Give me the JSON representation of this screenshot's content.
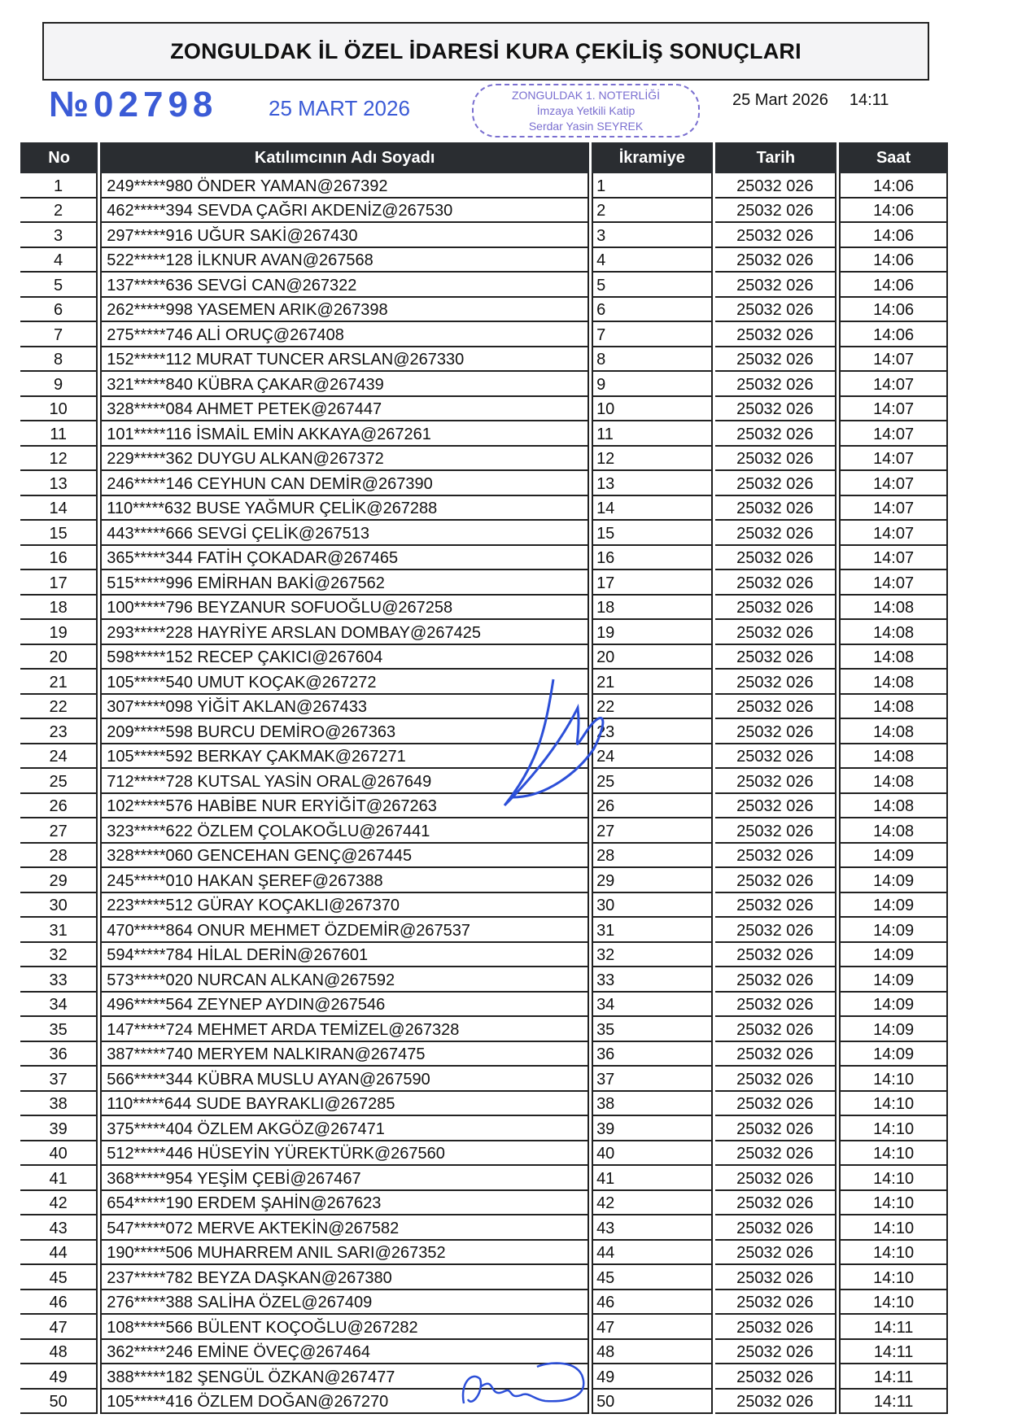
{
  "header": {
    "title": "ZONGULDAK İL ÖZEL İDARESİ KURA ÇEKİLİŞ SONUÇLARI",
    "date": "25 Mart 2026",
    "time": "14:11"
  },
  "table": {
    "columns": [
      "No",
      "Katılımcının Adı Soyadı",
      "İkramiye",
      "Tarih",
      "Saat"
    ],
    "rows": [
      [
        "1",
        "249*****980 ÖNDER YAMAN@267392",
        "1",
        "25032 026",
        "14:06"
      ],
      [
        "2",
        "462*****394 SEVDA ÇAĞRI AKDENİZ@267530",
        "2",
        "25032 026",
        "14:06"
      ],
      [
        "3",
        "297*****916 UĞUR SAKİ@267430",
        "3",
        "25032 026",
        "14:06"
      ],
      [
        "4",
        "522*****128 İLKNUR AVAN@267568",
        "4",
        "25032 026",
        "14:06"
      ],
      [
        "5",
        "137*****636 SEVGİ CAN@267322",
        "5",
        "25032 026",
        "14:06"
      ],
      [
        "6",
        "262*****998 YASEMEN ARIK@267398",
        "6",
        "25032 026",
        "14:06"
      ],
      [
        "7",
        "275*****746 ALİ ORUÇ@267408",
        "7",
        "25032 026",
        "14:06"
      ],
      [
        "8",
        "152*****112 MURAT TUNCER ARSLAN@267330",
        "8",
        "25032 026",
        "14:07"
      ],
      [
        "9",
        "321*****840 KÜBRA ÇAKAR@267439",
        "9",
        "25032 026",
        "14:07"
      ],
      [
        "10",
        "328*****084 AHMET PETEK@267447",
        "10",
        "25032 026",
        "14:07"
      ],
      [
        "11",
        "101*****116 İSMAİL EMİN AKKAYA@267261",
        "11",
        "25032 026",
        "14:07"
      ],
      [
        "12",
        "229*****362 DUYGU ALKAN@267372",
        "12",
        "25032 026",
        "14:07"
      ],
      [
        "13",
        "246*****146 CEYHUN CAN DEMİR@267390",
        "13",
        "25032 026",
        "14:07"
      ],
      [
        "14",
        "110*****632 BUSE YAĞMUR ÇELİK@267288",
        "14",
        "25032 026",
        "14:07"
      ],
      [
        "15",
        "443*****666 SEVGİ ÇELİK@267513",
        "15",
        "25032 026",
        "14:07"
      ],
      [
        "16",
        "365*****344 FATİH ÇOKADAR@267465",
        "16",
        "25032 026",
        "14:07"
      ],
      [
        "17",
        "515*****996 EMİRHAN BAKİ@267562",
        "17",
        "25032 026",
        "14:07"
      ],
      [
        "18",
        "100*****796 BEYZANUR SOFUOĞLU@267258",
        "18",
        "25032 026",
        "14:08"
      ],
      [
        "19",
        "293*****228 HAYRİYE ARSLAN DOMBAY@267425",
        "19",
        "25032 026",
        "14:08"
      ],
      [
        "20",
        "598*****152 RECEP ÇAKICI@267604",
        "20",
        "25032 026",
        "14:08"
      ],
      [
        "21",
        "105*****540 UMUT KOÇAK@267272",
        "21",
        "25032 026",
        "14:08"
      ],
      [
        "22",
        "307*****098 YİĞİT AKLAN@267433",
        "22",
        "25032 026",
        "14:08"
      ],
      [
        "23",
        "209*****598 BURCU DEMİRO@267363",
        "23",
        "25032 026",
        "14:08"
      ],
      [
        "24",
        "105*****592 BERKAY ÇAKMAK@267271",
        "24",
        "25032 026",
        "14:08"
      ],
      [
        "25",
        "712*****728 KUTSAL YASİN ORAL@267649",
        "25",
        "25032 026",
        "14:08"
      ],
      [
        "26",
        "102*****576 HABİBE NUR ERYİĞİT@267263",
        "26",
        "25032 026",
        "14:08"
      ],
      [
        "27",
        "323*****622 ÖZLEM ÇOLAKOĞLU@267441",
        "27",
        "25032 026",
        "14:08"
      ],
      [
        "28",
        "328*****060 GENCEHAN GENÇ@267445",
        "28",
        "25032 026",
        "14:09"
      ],
      [
        "29",
        "245*****010 HAKAN ŞEREF@267388",
        "29",
        "25032 026",
        "14:09"
      ],
      [
        "30",
        "223*****512 GÜRAY KOÇAKLI@267370",
        "30",
        "25032 026",
        "14:09"
      ],
      [
        "31",
        "470*****864 ONUR MEHMET ÖZDEMİR@267537",
        "31",
        "25032 026",
        "14:09"
      ],
      [
        "32",
        "594*****784 HİLAL DERİN@267601",
        "32",
        "25032 026",
        "14:09"
      ],
      [
        "33",
        "573*****020 NURCAN ALKAN@267592",
        "33",
        "25032 026",
        "14:09"
      ],
      [
        "34",
        "496*****564 ZEYNEP AYDIN@267546",
        "34",
        "25032 026",
        "14:09"
      ],
      [
        "35",
        "147*****724 MEHMET ARDA TEMİZEL@267328",
        "35",
        "25032 026",
        "14:09"
      ],
      [
        "36",
        "387*****740 MERYEM NALKIRAN@267475",
        "36",
        "25032 026",
        "14:09"
      ],
      [
        "37",
        "566*****344 KÜBRA MUSLU AYAN@267590",
        "37",
        "25032 026",
        "14:10"
      ],
      [
        "38",
        "110*****644 SUDE BAYRAKLI@267285",
        "38",
        "25032 026",
        "14:10"
      ],
      [
        "39",
        "375*****404 ÖZLEM AKGÖZ@267471",
        "39",
        "25032 026",
        "14:10"
      ],
      [
        "40",
        "512*****446 HÜSEYİN YÜREKTÜRK@267560",
        "40",
        "25032 026",
        "14:10"
      ],
      [
        "41",
        "368*****954 YEŞİM ÇEBİ@267467",
        "41",
        "25032 026",
        "14:10"
      ],
      [
        "42",
        "654*****190 ERDEM ŞAHİN@267623",
        "42",
        "25032 026",
        "14:10"
      ],
      [
        "43",
        "547*****072 MERVE AKTEKİN@267582",
        "43",
        "25032 026",
        "14:10"
      ],
      [
        "44",
        "190*****506 MUHARREM ANIL SARI@267352",
        "44",
        "25032 026",
        "14:10"
      ],
      [
        "45",
        "237*****782 BEYZA DAŞKAN@267380",
        "45",
        "25032 026",
        "14:10"
      ],
      [
        "46",
        "276*****388 SALİHA ÖZEL@267409",
        "46",
        "25032 026",
        "14:10"
      ],
      [
        "47",
        "108*****566 BÜLENT KOÇOĞLU@267282",
        "47",
        "25032 026",
        "14:11"
      ],
      [
        "48",
        "362*****246 EMİNE ÖVEÇ@267464",
        "48",
        "25032 026",
        "14:11"
      ],
      [
        "49",
        "388*****182 ŞENGÜL ÖZKAN@267477",
        "49",
        "25032 026",
        "14:11"
      ],
      [
        "50",
        "105*****416 ÖZLEM DOĞAN@267270",
        "50",
        "25032 026",
        "14:11"
      ]
    ]
  },
  "stamps": {
    "number_stamp": "№02798",
    "date_stamp": "25 MART 2026",
    "seal_lines": [
      "ZONGULDAK 1. NOTERLİĞİ",
      "İmzaya Yetkili Katip",
      "Serdar Yasin SEYREK"
    ],
    "ink_color": "#3b5bd6",
    "seal_color": "#7a6fd0"
  }
}
